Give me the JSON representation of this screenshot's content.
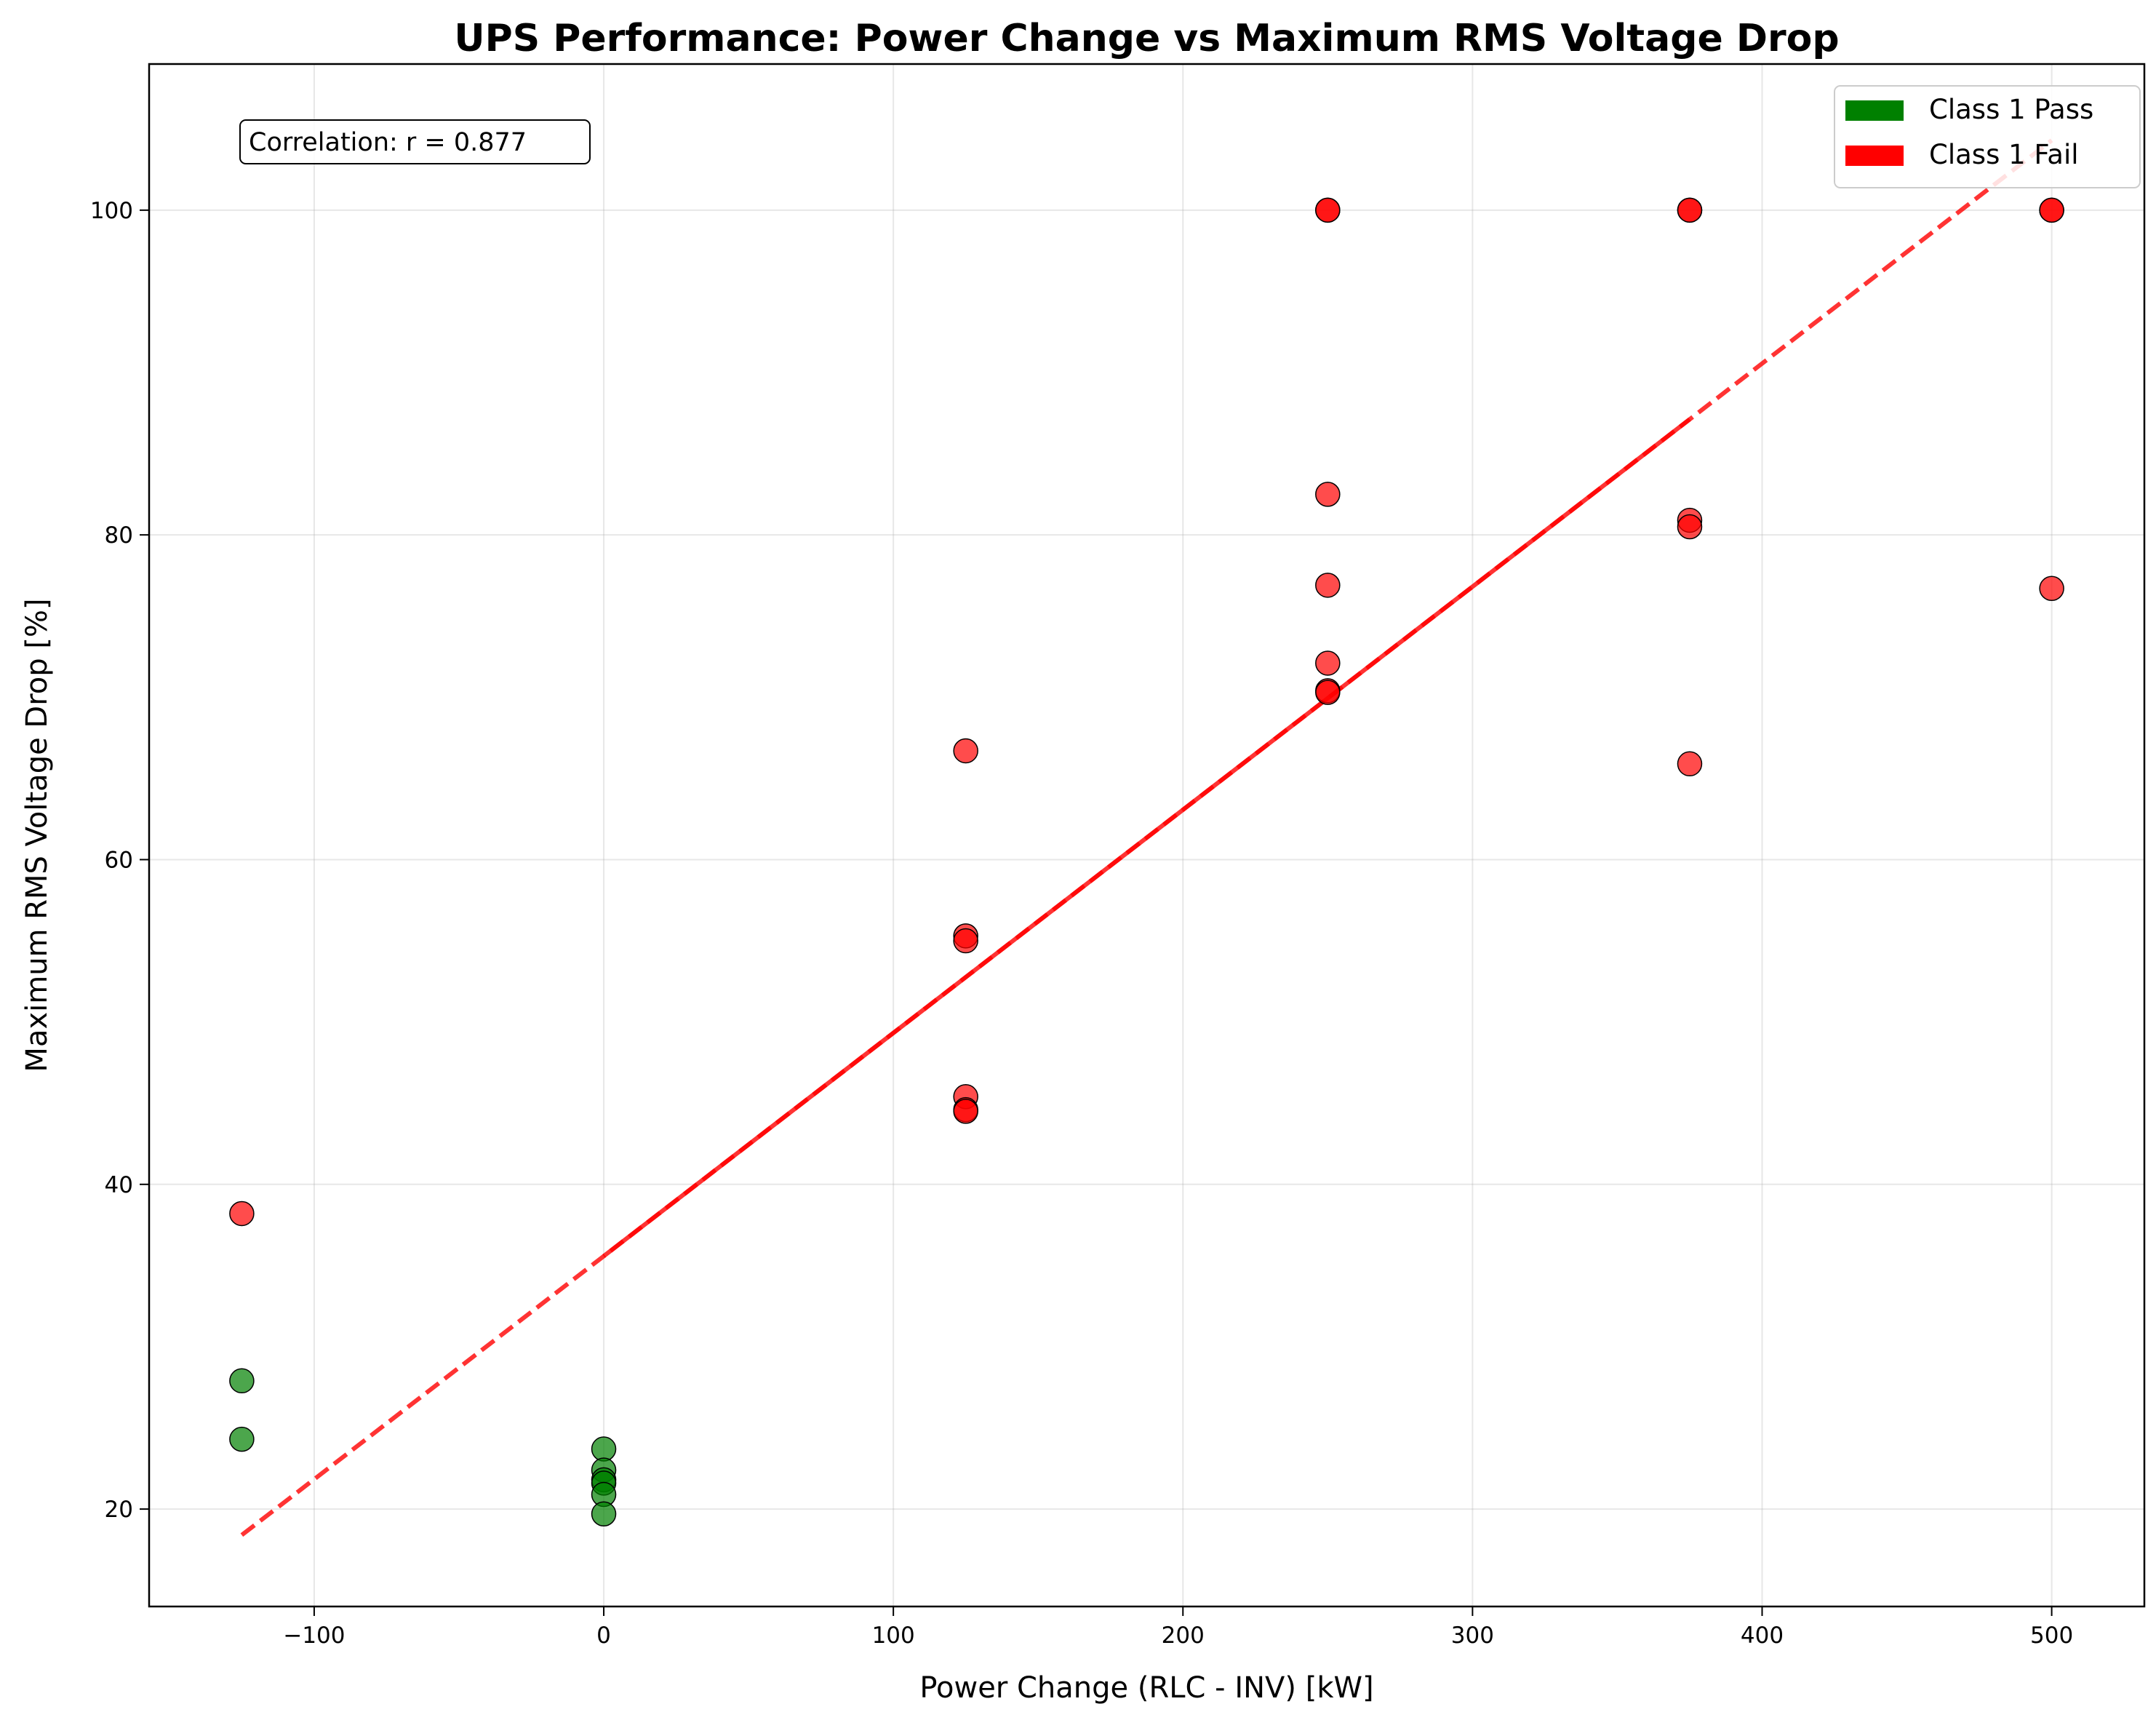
{
  "chart_data": {
    "type": "scatter",
    "title": "UPS Performance: Power Change vs Maximum RMS Voltage Drop",
    "xlabel": "Power Change (RLC - INV) [kW]",
    "ylabel": "Maximum RMS Voltage Drop [%]",
    "xlim": [
      -157,
      532
    ],
    "ylim": [
      14,
      109
    ],
    "xticks": [
      -100,
      0,
      100,
      200,
      300,
      400,
      500
    ],
    "yticks": [
      20,
      40,
      60,
      80,
      100
    ],
    "xtick_labels": [
      "−100",
      "0",
      "100",
      "200",
      "300",
      "400",
      "500"
    ],
    "ytick_labels": [
      "20",
      "40",
      "60",
      "80",
      "100"
    ],
    "grid": true,
    "legend_position": "top-right",
    "annotation": "Correlation: r = 0.877",
    "series": [
      {
        "name": "Class 1 Pass",
        "color": "#008000",
        "points": [
          {
            "x": -125,
            "y": 27.9
          },
          {
            "x": -125,
            "y": 24.3
          },
          {
            "x": 0,
            "y": 23.7
          },
          {
            "x": 0,
            "y": 22.4
          },
          {
            "x": 0,
            "y": 21.8
          },
          {
            "x": 0,
            "y": 21.6
          },
          {
            "x": 0,
            "y": 20.9
          },
          {
            "x": 0,
            "y": 19.7
          }
        ]
      },
      {
        "name": "Class 1 Fail",
        "color": "#ff0000",
        "points": [
          {
            "x": -125,
            "y": 38.2
          },
          {
            "x": 125,
            "y": 66.7
          },
          {
            "x": 125,
            "y": 55.3
          },
          {
            "x": 125,
            "y": 55.0
          },
          {
            "x": 125,
            "y": 45.4
          },
          {
            "x": 125,
            "y": 44.6
          },
          {
            "x": 125,
            "y": 44.5
          },
          {
            "x": 250,
            "y": 100
          },
          {
            "x": 250,
            "y": 100
          },
          {
            "x": 250,
            "y": 82.5
          },
          {
            "x": 250,
            "y": 76.9
          },
          {
            "x": 250,
            "y": 72.1
          },
          {
            "x": 250,
            "y": 70.4
          },
          {
            "x": 250,
            "y": 70.3
          },
          {
            "x": 375,
            "y": 100
          },
          {
            "x": 375,
            "y": 100
          },
          {
            "x": 375,
            "y": 80.9
          },
          {
            "x": 375,
            "y": 80.5
          },
          {
            "x": 375,
            "y": 65.9
          },
          {
            "x": 500,
            "y": 100
          },
          {
            "x": 500,
            "y": 100
          },
          {
            "x": 500,
            "y": 76.7
          }
        ]
      }
    ],
    "trend_line": {
      "color": "#ff0000",
      "x_start": -125,
      "x_end": 500,
      "y_start": 18.4,
      "y_end": 104.3,
      "solid_from": 0,
      "solid_to": 375
    }
  }
}
